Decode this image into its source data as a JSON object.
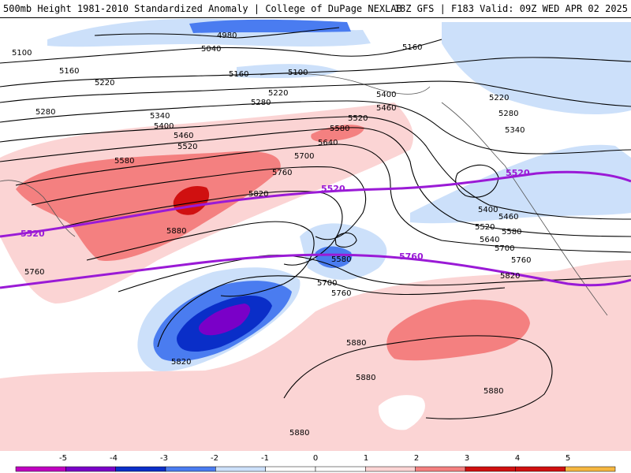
{
  "header": {
    "left": "500mb Height 1981-2010 Standardized Anomaly | College of DuPage NEXLAB",
    "right": "18Z GFS | F183 Valid: 09Z WED APR 02 2025"
  },
  "colors": {
    "neg5": "#c000c0",
    "neg4": "#7a00c8",
    "neg3": "#0a2ec8",
    "neg2": "#4a7cf0",
    "neg1": "#cce0fa",
    "zero": "#ffffff",
    "pos1": "#fbd4d4",
    "pos2": "#f48080",
    "pos3": "#d01010",
    "pos4": "#f5b640",
    "contour": "#000000",
    "highlight": "#9a1ad6"
  },
  "contours": [
    "4980",
    "5040",
    "5100",
    "5100",
    "5160",
    "5160",
    "5160",
    "5220",
    "5220",
    "5220",
    "5280",
    "5280",
    "5280",
    "5340",
    "5340",
    "5400",
    "5400",
    "5400",
    "5460",
    "5460",
    "5460",
    "5520",
    "5520",
    "5520",
    "5580",
    "5580",
    "5580",
    "5580",
    "5640",
    "5640",
    "5700",
    "5700",
    "5700",
    "5760",
    "5760",
    "5760",
    "5760",
    "5820",
    "5820",
    "5820",
    "5880",
    "5880",
    "5880",
    "5880",
    "5880"
  ],
  "highlight_labels": [
    "5520",
    "5520",
    "5520",
    "5760"
  ],
  "legend": {
    "ticks": [
      "-5",
      "-4",
      "-3",
      "-2",
      "-1",
      "0",
      "1",
      "2",
      "3",
      "4",
      "5"
    ]
  }
}
